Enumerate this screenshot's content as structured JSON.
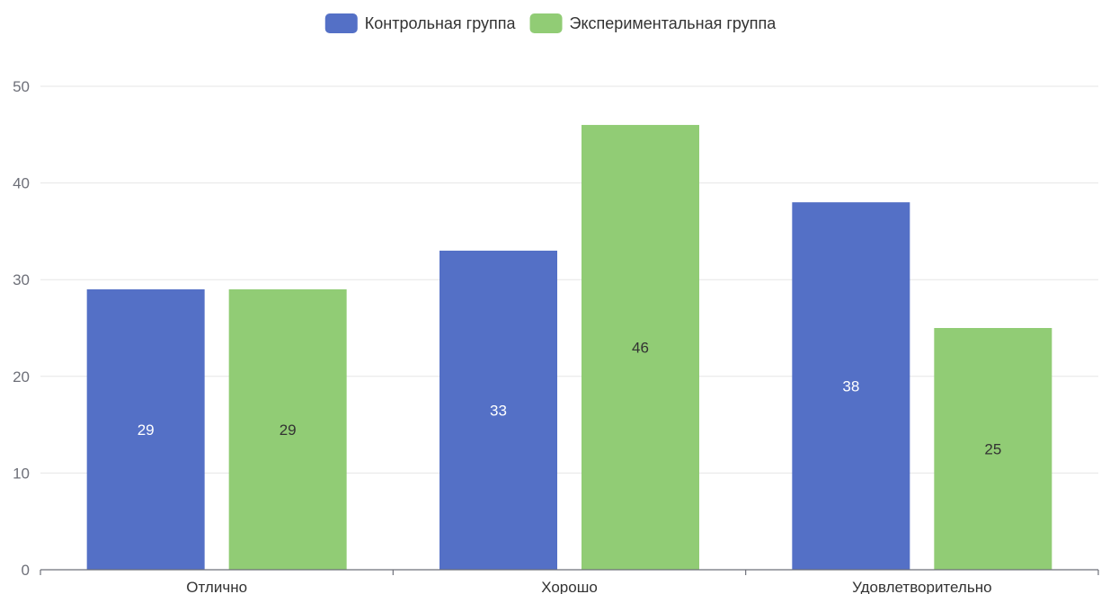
{
  "chart_data": {
    "type": "bar",
    "title": "",
    "xlabel": "",
    "ylabel": "",
    "categories": [
      "Отлично",
      "Хорошо",
      "Удовлетворительно"
    ],
    "series": [
      {
        "name": "Контрольная группа",
        "values": [
          29,
          33,
          38
        ],
        "color": "#5470c6",
        "label_color": "#ffffff"
      },
      {
        "name": "Экспериментальная группа",
        "values": [
          29,
          46,
          25
        ],
        "color": "#91cc75",
        "label_color": "#333333"
      }
    ],
    "ylim": [
      0,
      50
    ],
    "yticks": [
      0,
      10,
      20,
      30,
      40,
      50
    ],
    "grid": true,
    "legend_position": "top-center",
    "data_labels": true
  }
}
